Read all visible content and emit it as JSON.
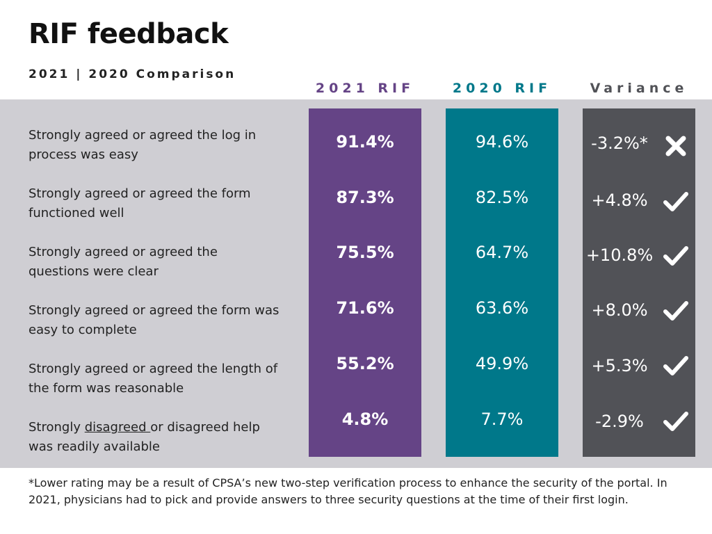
{
  "title": "RIF feedback",
  "subtitle": "2021 | 2020 Comparison",
  "columns": {
    "c2021": {
      "label": "2021 RIF",
      "color": "#654486"
    },
    "c2020": {
      "label": "2020 RIF",
      "color": "#00788a"
    },
    "variance": {
      "label": "Variance",
      "color": "#515257"
    }
  },
  "rows": [
    {
      "label_line1": "Strongly agreed or agreed the log in",
      "label_line2": "process was easy",
      "v2021": "91.4%",
      "v2020": "94.6%",
      "variance": "-3.2%*",
      "mark": "cross-icon"
    },
    {
      "label_line1": "Strongly agreed or agreed the form",
      "label_line2": "functioned well",
      "v2021": "87.3%",
      "v2020": "82.5%",
      "variance": "+4.8%",
      "mark": "check-icon"
    },
    {
      "label_line1": "Strongly agreed or agreed the",
      "label_line2": "questions were clear",
      "v2021": "75.5%",
      "v2020": "64.7%",
      "variance": "+10.8%",
      "mark": "check-icon"
    },
    {
      "label_line1": "Strongly agreed or agreed the form was",
      "label_line2": "easy to complete",
      "v2021": "71.6%",
      "v2020": "63.6%",
      "variance": "+8.0%",
      "mark": "check-icon"
    },
    {
      "label_line1": "Strongly agreed or agreed the length of",
      "label_line2": "the form was reasonable",
      "v2021": "55.2%",
      "v2020": "49.9%",
      "variance": "+5.3%",
      "mark": "check-icon"
    },
    {
      "label_pre": "Strongly ",
      "label_underlined": "disagreed ",
      "label_post": "or disagreed help",
      "label_line2": "was readily available",
      "v2021": "4.8%",
      "v2020": "7.7%",
      "variance": "-2.9%",
      "mark": "check-icon"
    }
  ],
  "footnote": "*Lower rating may be a result of CPSA’s new two-step verification process to enhance the security of the portal. In 2021, physicians had to pick and provide answers to three security questions at the time of their first login."
}
